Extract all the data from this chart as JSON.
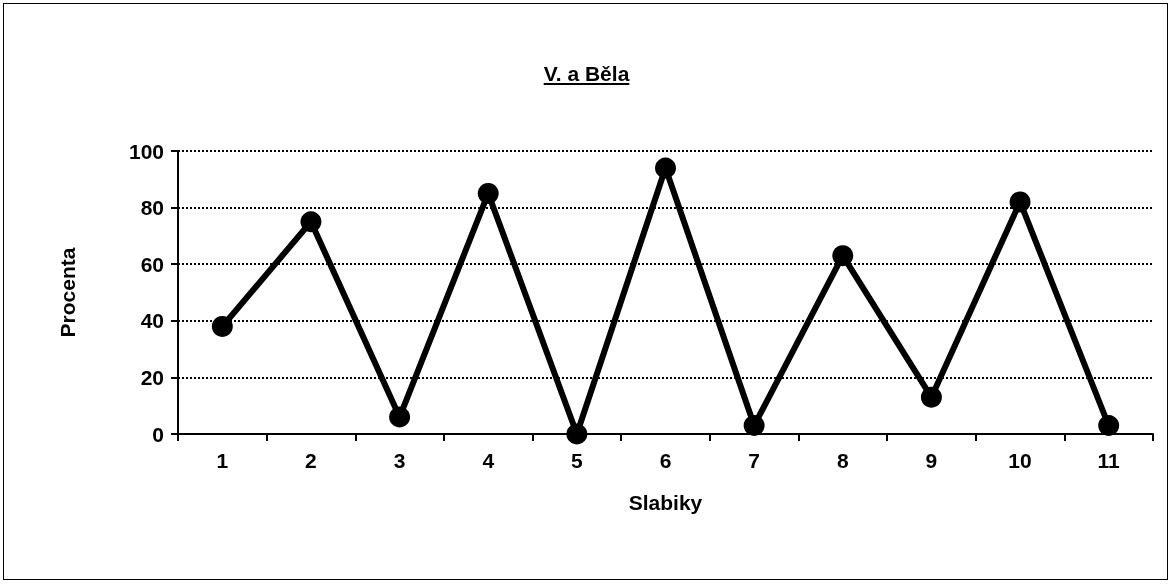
{
  "chart_data": {
    "type": "line",
    "title": "V. a Běla",
    "xlabel": "Slabiky",
    "ylabel": "Procenta",
    "categories": [
      "1",
      "2",
      "3",
      "4",
      "5",
      "6",
      "7",
      "8",
      "9",
      "10",
      "11"
    ],
    "series": [
      {
        "color": "#000000",
        "values": [
          38,
          75,
          6,
          85,
          0,
          94,
          3,
          63,
          13,
          82,
          3
        ]
      }
    ],
    "ylim": [
      0,
      100
    ],
    "yticks": [
      0,
      20,
      40,
      60,
      80,
      100
    ],
    "grid": "y",
    "marker": "circle",
    "line_style": "solid"
  }
}
